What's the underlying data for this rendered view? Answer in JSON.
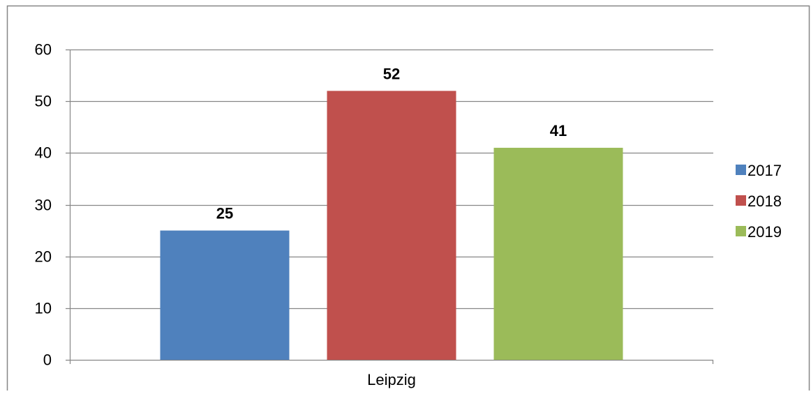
{
  "chart_data": {
    "type": "bar",
    "categories": [
      "Leipzig"
    ],
    "series": [
      {
        "name": "2017",
        "values": [
          25
        ],
        "color": "#4f81bd"
      },
      {
        "name": "2018",
        "values": [
          52
        ],
        "color": "#c0504d"
      },
      {
        "name": "2019",
        "values": [
          41
        ],
        "color": "#9bbb59"
      }
    ],
    "title": "",
    "xlabel": "",
    "ylabel": "",
    "ylim": [
      0,
      60
    ],
    "yticks": [
      0,
      10,
      20,
      30,
      40,
      50,
      60
    ],
    "grid": true,
    "legend_position": "right",
    "data_labels": true
  }
}
